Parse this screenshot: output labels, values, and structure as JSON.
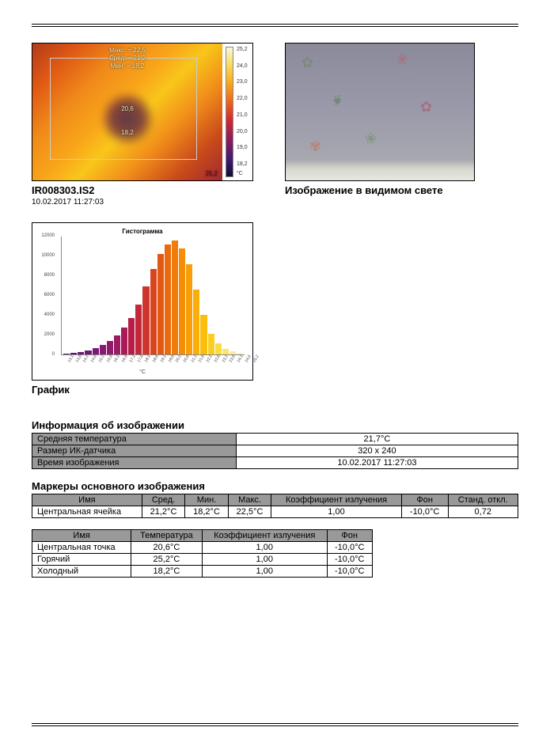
{
  "thermal": {
    "overlay": {
      "max": "Макс. = 22,5",
      "avg": "Сред. = 21,2",
      "min": "Мин. = 18,2",
      "center_val": "20,6",
      "cold_val": "18,2",
      "corner_val": "25,2"
    },
    "scale_ticks": [
      "25,2",
      "24,0",
      "23,0",
      "22,0",
      "21,0",
      "20,0",
      "19,0",
      "18,2"
    ],
    "scale_unit": "°C",
    "caption_title": "IR008303.IS2",
    "caption_sub": "10.02.2017 11:27:03"
  },
  "visible": {
    "caption": "Изображение в видимом свете"
  },
  "histogram": {
    "title": "Гистограмма",
    "y_ticks": [
      "12000",
      "10000",
      "8000",
      "6000",
      "4000",
      "2000",
      "0"
    ],
    "y_max": 12000,
    "x_label": "°C",
    "x_ticks_dense": [
      "13,1",
      "13,6",
      "14,1",
      "14,6",
      "15,1",
      "15,6",
      "16,1",
      "16,6",
      "17,1",
      "17,6",
      "18,1",
      "18,6",
      "19,1",
      "19,6",
      "20,1",
      "20,6",
      "21,1",
      "21,6",
      "22,1",
      "22,6",
      "23,1",
      "23,6",
      "24,1",
      "24,6",
      "25,2"
    ],
    "bars": [
      {
        "v": 80,
        "c": "#5a1a70"
      },
      {
        "v": 150,
        "c": "#5a1a70"
      },
      {
        "v": 260,
        "c": "#661a72"
      },
      {
        "v": 420,
        "c": "#701a74"
      },
      {
        "v": 680,
        "c": "#7a1a76"
      },
      {
        "v": 980,
        "c": "#861a72"
      },
      {
        "v": 1400,
        "c": "#921a6c"
      },
      {
        "v": 1950,
        "c": "#9e1a62"
      },
      {
        "v": 2700,
        "c": "#aa1a56"
      },
      {
        "v": 3700,
        "c": "#b61e48"
      },
      {
        "v": 5100,
        "c": "#c2283a"
      },
      {
        "v": 6900,
        "c": "#ce362c"
      },
      {
        "v": 8700,
        "c": "#d8461e"
      },
      {
        "v": 10200,
        "c": "#e25814"
      },
      {
        "v": 11200,
        "c": "#ea6a0e"
      },
      {
        "v": 11600,
        "c": "#f07c0a"
      },
      {
        "v": 10800,
        "c": "#f48e08"
      },
      {
        "v": 9200,
        "c": "#f89e08"
      },
      {
        "v": 6600,
        "c": "#faae0a"
      },
      {
        "v": 4000,
        "c": "#fabe10"
      },
      {
        "v": 2100,
        "c": "#face20"
      },
      {
        "v": 1100,
        "c": "#fadc40"
      },
      {
        "v": 600,
        "c": "#fae470"
      },
      {
        "v": 350,
        "c": "#faeca0"
      },
      {
        "v": 200,
        "c": "#faf2c0"
      }
    ],
    "caption": "График"
  },
  "info": {
    "title": "Информация об изображении",
    "rows": [
      {
        "label": "Средняя температура",
        "value": "21,7°C"
      },
      {
        "label": "Размер ИК-датчика",
        "value": "320 x 240"
      },
      {
        "label": "Время изображения",
        "value": "10.02.2017 11:27:03"
      }
    ]
  },
  "markers": {
    "title": "Маркеры основного изображения",
    "headers": [
      "Имя",
      "Сред.",
      "Мин.",
      "Макс.",
      "Коэффициент излучения",
      "Фон",
      "Станд. откл."
    ],
    "rows": [
      [
        "Центральная ячейка",
        "21,2°C",
        "18,2°C",
        "22,5°C",
        "1,00",
        "-10,0°C",
        "0,72"
      ]
    ]
  },
  "points": {
    "headers": [
      "Имя",
      "Температура",
      "Коэффициент излучения",
      "Фон"
    ],
    "rows": [
      [
        "Центральная точка",
        "20,6°C",
        "1,00",
        "-10,0°C"
      ],
      [
        "Горячий",
        "25,2°C",
        "1,00",
        "-10,0°C"
      ],
      [
        "Холодный",
        "18,2°C",
        "1,00",
        "-10,0°C"
      ]
    ]
  }
}
